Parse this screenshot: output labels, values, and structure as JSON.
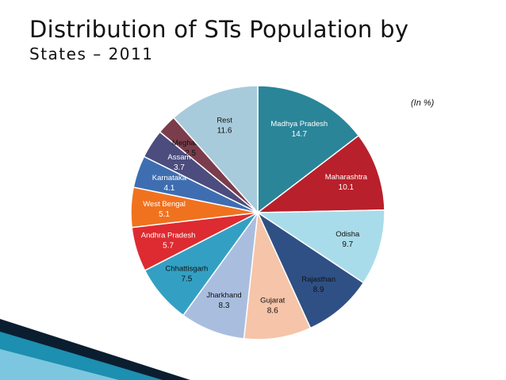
{
  "title": "Distribution of STs Population by",
  "subtitle": "States – 2011",
  "unit_note": "(In %)",
  "chart_data": {
    "type": "pie",
    "start": "top, clockwise",
    "categories": [
      "Madhya Pradesh",
      "Maharashtra",
      "Odisha",
      "Rajasthan",
      "Gujarat",
      "Jharkhand",
      "Chhattisgarh",
      "Andhra Pradesh",
      "West Bengal",
      "Karnataka",
      "Assam",
      "Meghalaya",
      "Rest"
    ],
    "values": [
      14.7,
      10.1,
      9.7,
      8.9,
      8.6,
      8.3,
      7.5,
      5.7,
      5.1,
      4.1,
      3.7,
      2.5,
      11.6
    ],
    "colors": [
      "#2a8599",
      "#b8202b",
      "#a9dcea",
      "#2f5084",
      "#f6c4a8",
      "#a9bedf",
      "#33a0c3",
      "#dd2b31",
      "#f0721f",
      "#3e6eb1",
      "#4c4c7e",
      "#7b3d4b",
      "#a8cbdc"
    ],
    "label_colors": [
      "#ffffff",
      "#ffffff",
      "#111111",
      "#111111",
      "#111111",
      "#111111",
      "#111111",
      "#ffffff",
      "#ffffff",
      "#ffffff",
      "#ffffff",
      "#111111",
      "#111111"
    ]
  },
  "decor": {
    "accent_dark": "#0b1e30",
    "accent_teal": "#1d8fb0"
  }
}
